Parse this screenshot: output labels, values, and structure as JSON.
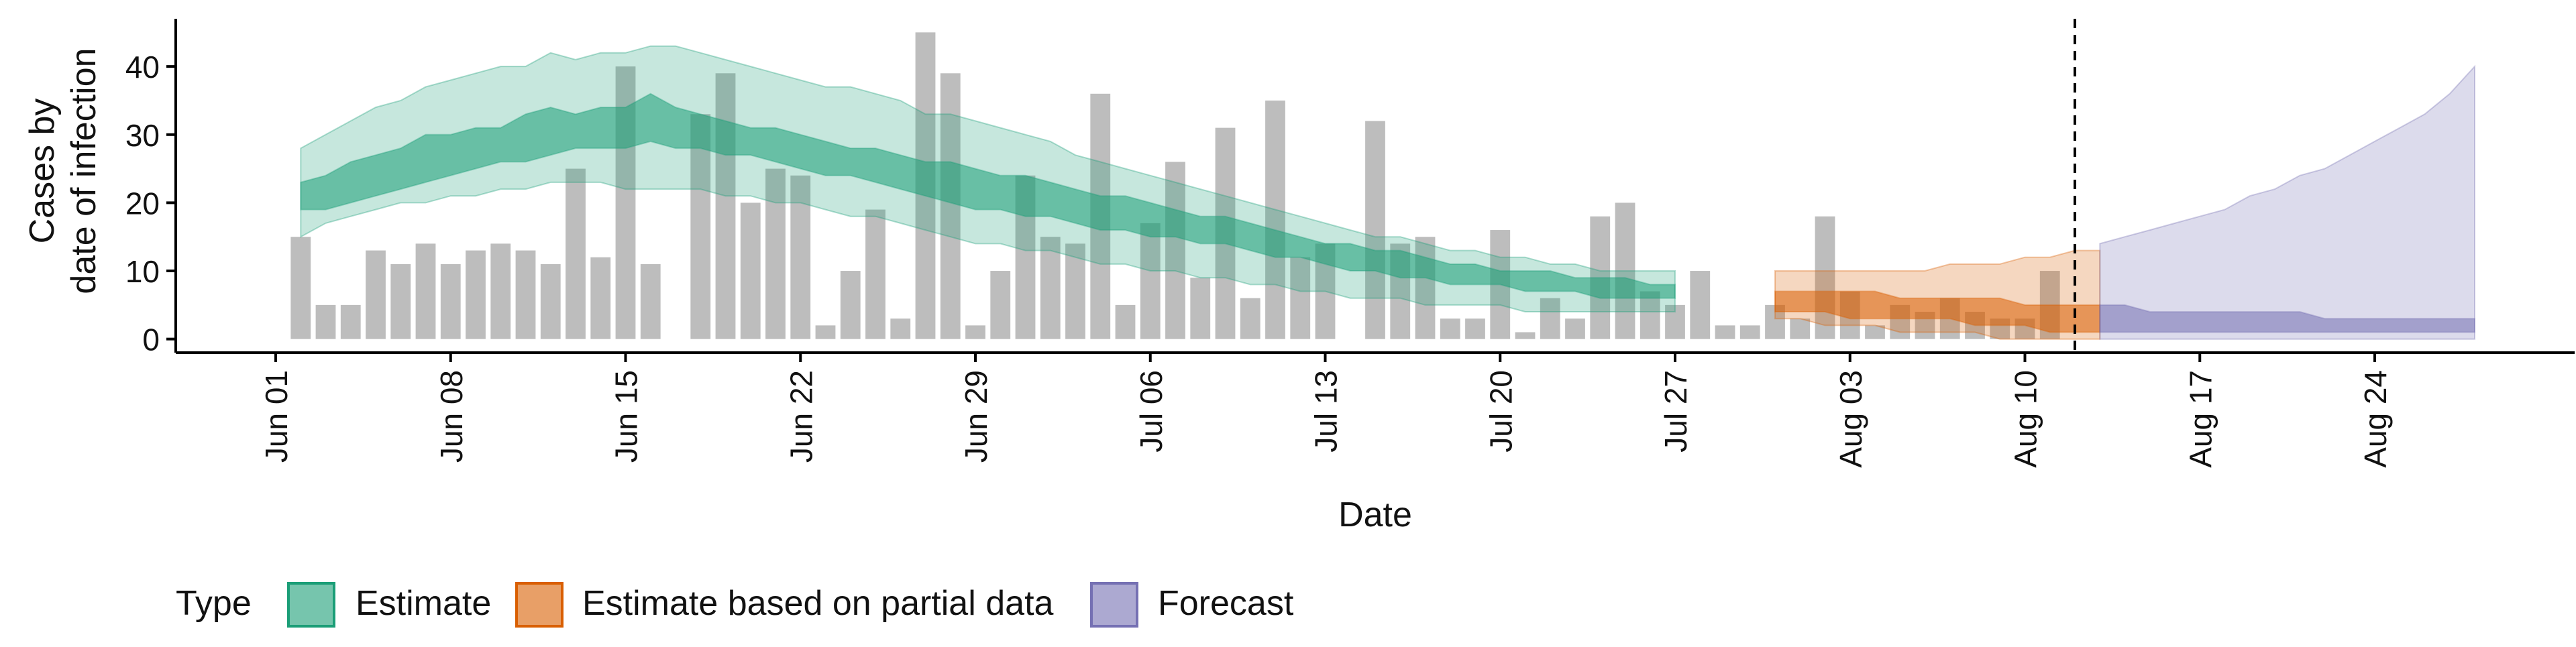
{
  "chart_data": {
    "type": "bar",
    "xlabel": "Date",
    "ylabel_line1": "Cases by",
    "ylabel_line2": "date of infection",
    "x_start_date": "2020-06-01",
    "x_range": [
      "2020-05-28",
      "2020-09-01"
    ],
    "ylim": [
      -2,
      47
    ],
    "yticks": [
      0,
      10,
      20,
      30,
      40
    ],
    "xticks": [
      {
        "date": "2020-06-01",
        "label": "Jun 01"
      },
      {
        "date": "2020-06-08",
        "label": "Jun 08"
      },
      {
        "date": "2020-06-15",
        "label": "Jun 15"
      },
      {
        "date": "2020-06-22",
        "label": "Jun 22"
      },
      {
        "date": "2020-06-29",
        "label": "Jun 29"
      },
      {
        "date": "2020-07-06",
        "label": "Jul 06"
      },
      {
        "date": "2020-07-13",
        "label": "Jul 13"
      },
      {
        "date": "2020-07-20",
        "label": "Jul 20"
      },
      {
        "date": "2020-07-27",
        "label": "Jul 27"
      },
      {
        "date": "2020-08-03",
        "label": "Aug 03"
      },
      {
        "date": "2020-08-10",
        "label": "Aug 10"
      },
      {
        "date": "2020-08-17",
        "label": "Aug 17"
      },
      {
        "date": "2020-08-24",
        "label": "Aug 24"
      }
    ],
    "grid": false,
    "forecast_start_line": "2020-08-12",
    "reported_cases": {
      "dates_start": "2020-06-02",
      "values": [
        15,
        5,
        5,
        13,
        11,
        14,
        11,
        13,
        14,
        13,
        11,
        25,
        12,
        40,
        11,
        0,
        33,
        39,
        20,
        25,
        24,
        2,
        10,
        19,
        3,
        45,
        39,
        2,
        10,
        24,
        15,
        14,
        36,
        5,
        17,
        26,
        9,
        31,
        6,
        35,
        12,
        14,
        0,
        32,
        14,
        15,
        3,
        3,
        16,
        1,
        6,
        3,
        18,
        20,
        7,
        5,
        10,
        2,
        2,
        5,
        3,
        18,
        7,
        2,
        5,
        4,
        6,
        4,
        3,
        3,
        10
      ]
    },
    "estimate_ribbons": [
      {
        "type": "Estimate",
        "start": "2020-06-02",
        "outer_upper": [
          28,
          30,
          32,
          34,
          35,
          37,
          38,
          39,
          40,
          40,
          42,
          41,
          42,
          42,
          43,
          43,
          42,
          41,
          40,
          39,
          38,
          37,
          37,
          36,
          35,
          33,
          33,
          32,
          31,
          30,
          29,
          27,
          26,
          25,
          24,
          23,
          22,
          21,
          20,
          19,
          18,
          17,
          16,
          15,
          15,
          14,
          13,
          13,
          12,
          12,
          11,
          11,
          10,
          10,
          10,
          10
        ],
        "inner_upper": [
          23,
          24,
          26,
          27,
          28,
          30,
          30,
          31,
          31,
          33,
          34,
          33,
          34,
          34,
          36,
          34,
          33,
          32,
          31,
          31,
          30,
          29,
          28,
          28,
          27,
          26,
          26,
          25,
          24,
          24,
          23,
          22,
          21,
          21,
          20,
          19,
          18,
          18,
          17,
          16,
          15,
          14,
          14,
          13,
          13,
          12,
          11,
          11,
          10,
          10,
          10,
          9,
          9,
          9,
          8,
          8
        ],
        "inner_lower": [
          19,
          19,
          20,
          21,
          22,
          23,
          24,
          25,
          26,
          26,
          27,
          28,
          28,
          28,
          29,
          28,
          28,
          27,
          27,
          26,
          25,
          24,
          24,
          23,
          22,
          21,
          20,
          19,
          19,
          18,
          18,
          17,
          16,
          16,
          15,
          15,
          14,
          14,
          13,
          12,
          12,
          11,
          10,
          10,
          9,
          9,
          8,
          8,
          8,
          7,
          7,
          7,
          6,
          6,
          6,
          6
        ],
        "outer_lower": [
          15,
          17,
          18,
          19,
          20,
          20,
          21,
          21,
          22,
          22,
          23,
          23,
          23,
          22,
          22,
          22,
          22,
          21,
          21,
          20,
          20,
          19,
          18,
          18,
          17,
          16,
          15,
          14,
          14,
          13,
          13,
          12,
          11,
          11,
          10,
          10,
          9,
          9,
          8,
          8,
          7,
          7,
          6,
          6,
          6,
          5,
          5,
          5,
          5,
          4,
          4,
          4,
          4,
          4,
          4,
          4
        ]
      },
      {
        "type": "Estimate based on partial data",
        "start": "2020-07-31",
        "outer_upper": [
          10,
          10,
          10,
          10,
          10,
          10,
          10,
          11,
          11,
          11,
          12,
          12,
          13,
          13
        ],
        "inner_upper": [
          7,
          7,
          7,
          7,
          7,
          6,
          6,
          6,
          6,
          6,
          5,
          5,
          5,
          5
        ],
        "inner_lower": [
          4,
          4,
          4,
          3,
          3,
          3,
          3,
          3,
          2,
          2,
          2,
          1,
          1,
          1
        ],
        "outer_lower": [
          3,
          3,
          2,
          2,
          2,
          1,
          1,
          1,
          1,
          0,
          0,
          0,
          0,
          0
        ]
      },
      {
        "type": "Forecast",
        "start": "2020-08-13",
        "outer_upper": [
          14,
          15,
          16,
          17,
          18,
          19,
          21,
          22,
          24,
          25,
          27,
          29,
          31,
          33,
          36,
          40
        ],
        "inner_upper": [
          5,
          5,
          4,
          4,
          4,
          4,
          4,
          4,
          4,
          3,
          3,
          3,
          3,
          3,
          3,
          3
        ],
        "inner_lower": [
          1,
          1,
          1,
          1,
          1,
          1,
          1,
          1,
          1,
          1,
          1,
          1,
          1,
          1,
          1,
          1
        ],
        "outer_lower": [
          0,
          0,
          0,
          0,
          0,
          0,
          0,
          0,
          0,
          0,
          0,
          0,
          0,
          0,
          0,
          0
        ]
      }
    ],
    "legend": {
      "position": "bottom-left",
      "title": "Type",
      "entries": [
        "Estimate",
        "Estimate based on partial data",
        "Forecast"
      ]
    },
    "colors": {
      "bar": "#bdbdbd",
      "Estimate": "#1b9e77",
      "Estimate based on partial data": "#d95f02",
      "Forecast": "#7570b3"
    }
  }
}
